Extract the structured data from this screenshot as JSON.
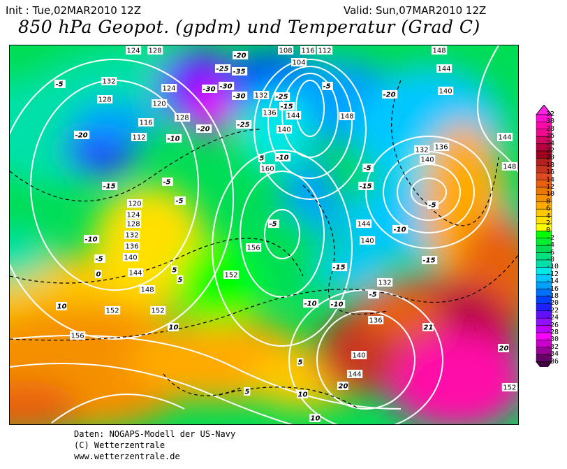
{
  "header": {
    "init": "Init : Tue,02MAR2010 12Z",
    "valid": "Valid: Sun,07MAR2010 12Z",
    "title": "850 hPa Geopot. (gpdm) und Temperatur (Grad C)"
  },
  "legend": {
    "labels": [
      "32",
      "30",
      "28",
      "26",
      "24",
      "22",
      "20",
      "18",
      "16",
      "14",
      "12",
      "10",
      "8",
      "6",
      "4",
      "2",
      "0",
      "-2",
      "-4",
      "-6",
      "-8",
      "-10",
      "-12",
      "-14",
      "-16",
      "-18",
      "-20",
      "-22",
      "-24",
      "-26",
      "-28",
      "-30",
      "-32",
      "-34",
      "-36"
    ],
    "colors": [
      "#ff22e6",
      "#ff10d0",
      "#ff0aa8",
      "#f00a90",
      "#d00860",
      "#b80040",
      "#a00020",
      "#b42020",
      "#c83420",
      "#e04a20",
      "#e86010",
      "#e87800",
      "#f59000",
      "#ffaa00",
      "#ffc800",
      "#ffe000",
      "#ffff00",
      "#00ff00",
      "#00ee30",
      "#00dd55",
      "#00e080",
      "#00e0a8",
      "#00e8e8",
      "#00c8ff",
      "#00a0ff",
      "#0070ff",
      "#0040ff",
      "#2020ff",
      "#6010ff",
      "#9010ff",
      "#c000ff",
      "#ff00ff",
      "#cc00cc",
      "#990099",
      "#660066",
      "#440044"
    ]
  },
  "map": {
    "geopotential_labels": [
      "124",
      "128",
      "132",
      "128",
      "124",
      "120",
      "116",
      "112",
      "120",
      "124",
      "128",
      "132",
      "136",
      "140",
      "144",
      "148",
      "152",
      "152",
      "156",
      "160",
      "156",
      "152",
      "116",
      "112",
      "108",
      "104",
      "132",
      "136",
      "128",
      "140",
      "144",
      "148",
      "144",
      "140",
      "136",
      "132",
      "140",
      "144",
      "148",
      "144",
      "140",
      "132",
      "136",
      "140",
      "144",
      "152",
      "148"
    ],
    "temperature_labels": [
      "-5",
      "-20",
      "-15",
      "-10",
      "-5",
      "0",
      "5",
      "-25",
      "-30",
      "-35",
      "-20",
      "-30",
      "-20",
      "-25",
      "-10",
      "-15",
      "-10",
      "5",
      "-25",
      "-15",
      "-5",
      "-5",
      "-5",
      "-20",
      "-15",
      "-5",
      "-10",
      "-15",
      "-10",
      "-5",
      "-10",
      "10",
      "10",
      "5",
      "5",
      "10",
      "5",
      "10",
      "20",
      "21",
      "20",
      "-5",
      "-5",
      "-30"
    ]
  },
  "footer": {
    "line1": "Daten: NOGAPS-Modell der US-Navy",
    "line2": "(C) Wetterzentrale",
    "line3": "www.wetterzentrale.de"
  }
}
